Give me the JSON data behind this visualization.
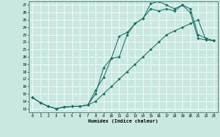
{
  "xlabel": "Humidex (Indice chaleur)",
  "bg_color": "#c8e8e0",
  "line_color": "#1a7068",
  "grid_color": "#ffffff",
  "xlim": [
    -0.5,
    23.5
  ],
  "ylim": [
    12.5,
    27.5
  ],
  "xticks": [
    0,
    1,
    2,
    3,
    4,
    5,
    6,
    7,
    8,
    9,
    10,
    11,
    12,
    13,
    14,
    15,
    16,
    17,
    18,
    19,
    20,
    21,
    22,
    23
  ],
  "yticks": [
    13,
    14,
    15,
    16,
    17,
    18,
    19,
    20,
    21,
    22,
    23,
    24,
    25,
    26,
    27
  ],
  "line1_x": [
    0,
    1,
    2,
    3,
    4,
    5,
    6,
    7,
    8,
    9,
    10,
    11,
    12,
    13,
    14,
    15,
    16,
    17,
    18,
    19,
    20,
    21,
    22,
    23
  ],
  "line1_y": [
    14.5,
    13.8,
    13.3,
    13.0,
    13.2,
    13.3,
    13.3,
    13.5,
    15.5,
    17.2,
    19.8,
    22.8,
    23.3,
    24.5,
    25.2,
    27.2,
    27.5,
    27.0,
    26.5,
    27.0,
    26.5,
    23.0,
    22.5,
    22.2
  ],
  "line2_x": [
    0,
    1,
    2,
    3,
    4,
    5,
    6,
    7,
    8,
    9,
    10,
    11,
    12,
    13,
    14,
    15,
    16,
    17,
    18,
    19,
    20,
    21,
    22,
    23
  ],
  "line2_y": [
    14.5,
    13.8,
    13.3,
    13.0,
    13.2,
    13.3,
    13.3,
    13.5,
    15.0,
    18.5,
    19.8,
    20.0,
    23.0,
    24.5,
    25.2,
    26.5,
    26.2,
    26.5,
    26.2,
    27.0,
    26.0,
    22.5,
    22.3,
    22.2
  ],
  "line3_x": [
    0,
    1,
    2,
    3,
    4,
    5,
    6,
    7,
    8,
    9,
    10,
    11,
    12,
    13,
    14,
    15,
    16,
    17,
    18,
    19,
    20,
    21,
    22,
    23
  ],
  "line3_y": [
    14.5,
    13.8,
    13.3,
    13.0,
    13.2,
    13.3,
    13.3,
    13.5,
    14.0,
    15.0,
    16.0,
    17.0,
    18.0,
    19.0,
    20.0,
    21.0,
    22.0,
    23.0,
    23.5,
    24.0,
    24.5,
    25.0,
    22.3,
    22.2
  ]
}
